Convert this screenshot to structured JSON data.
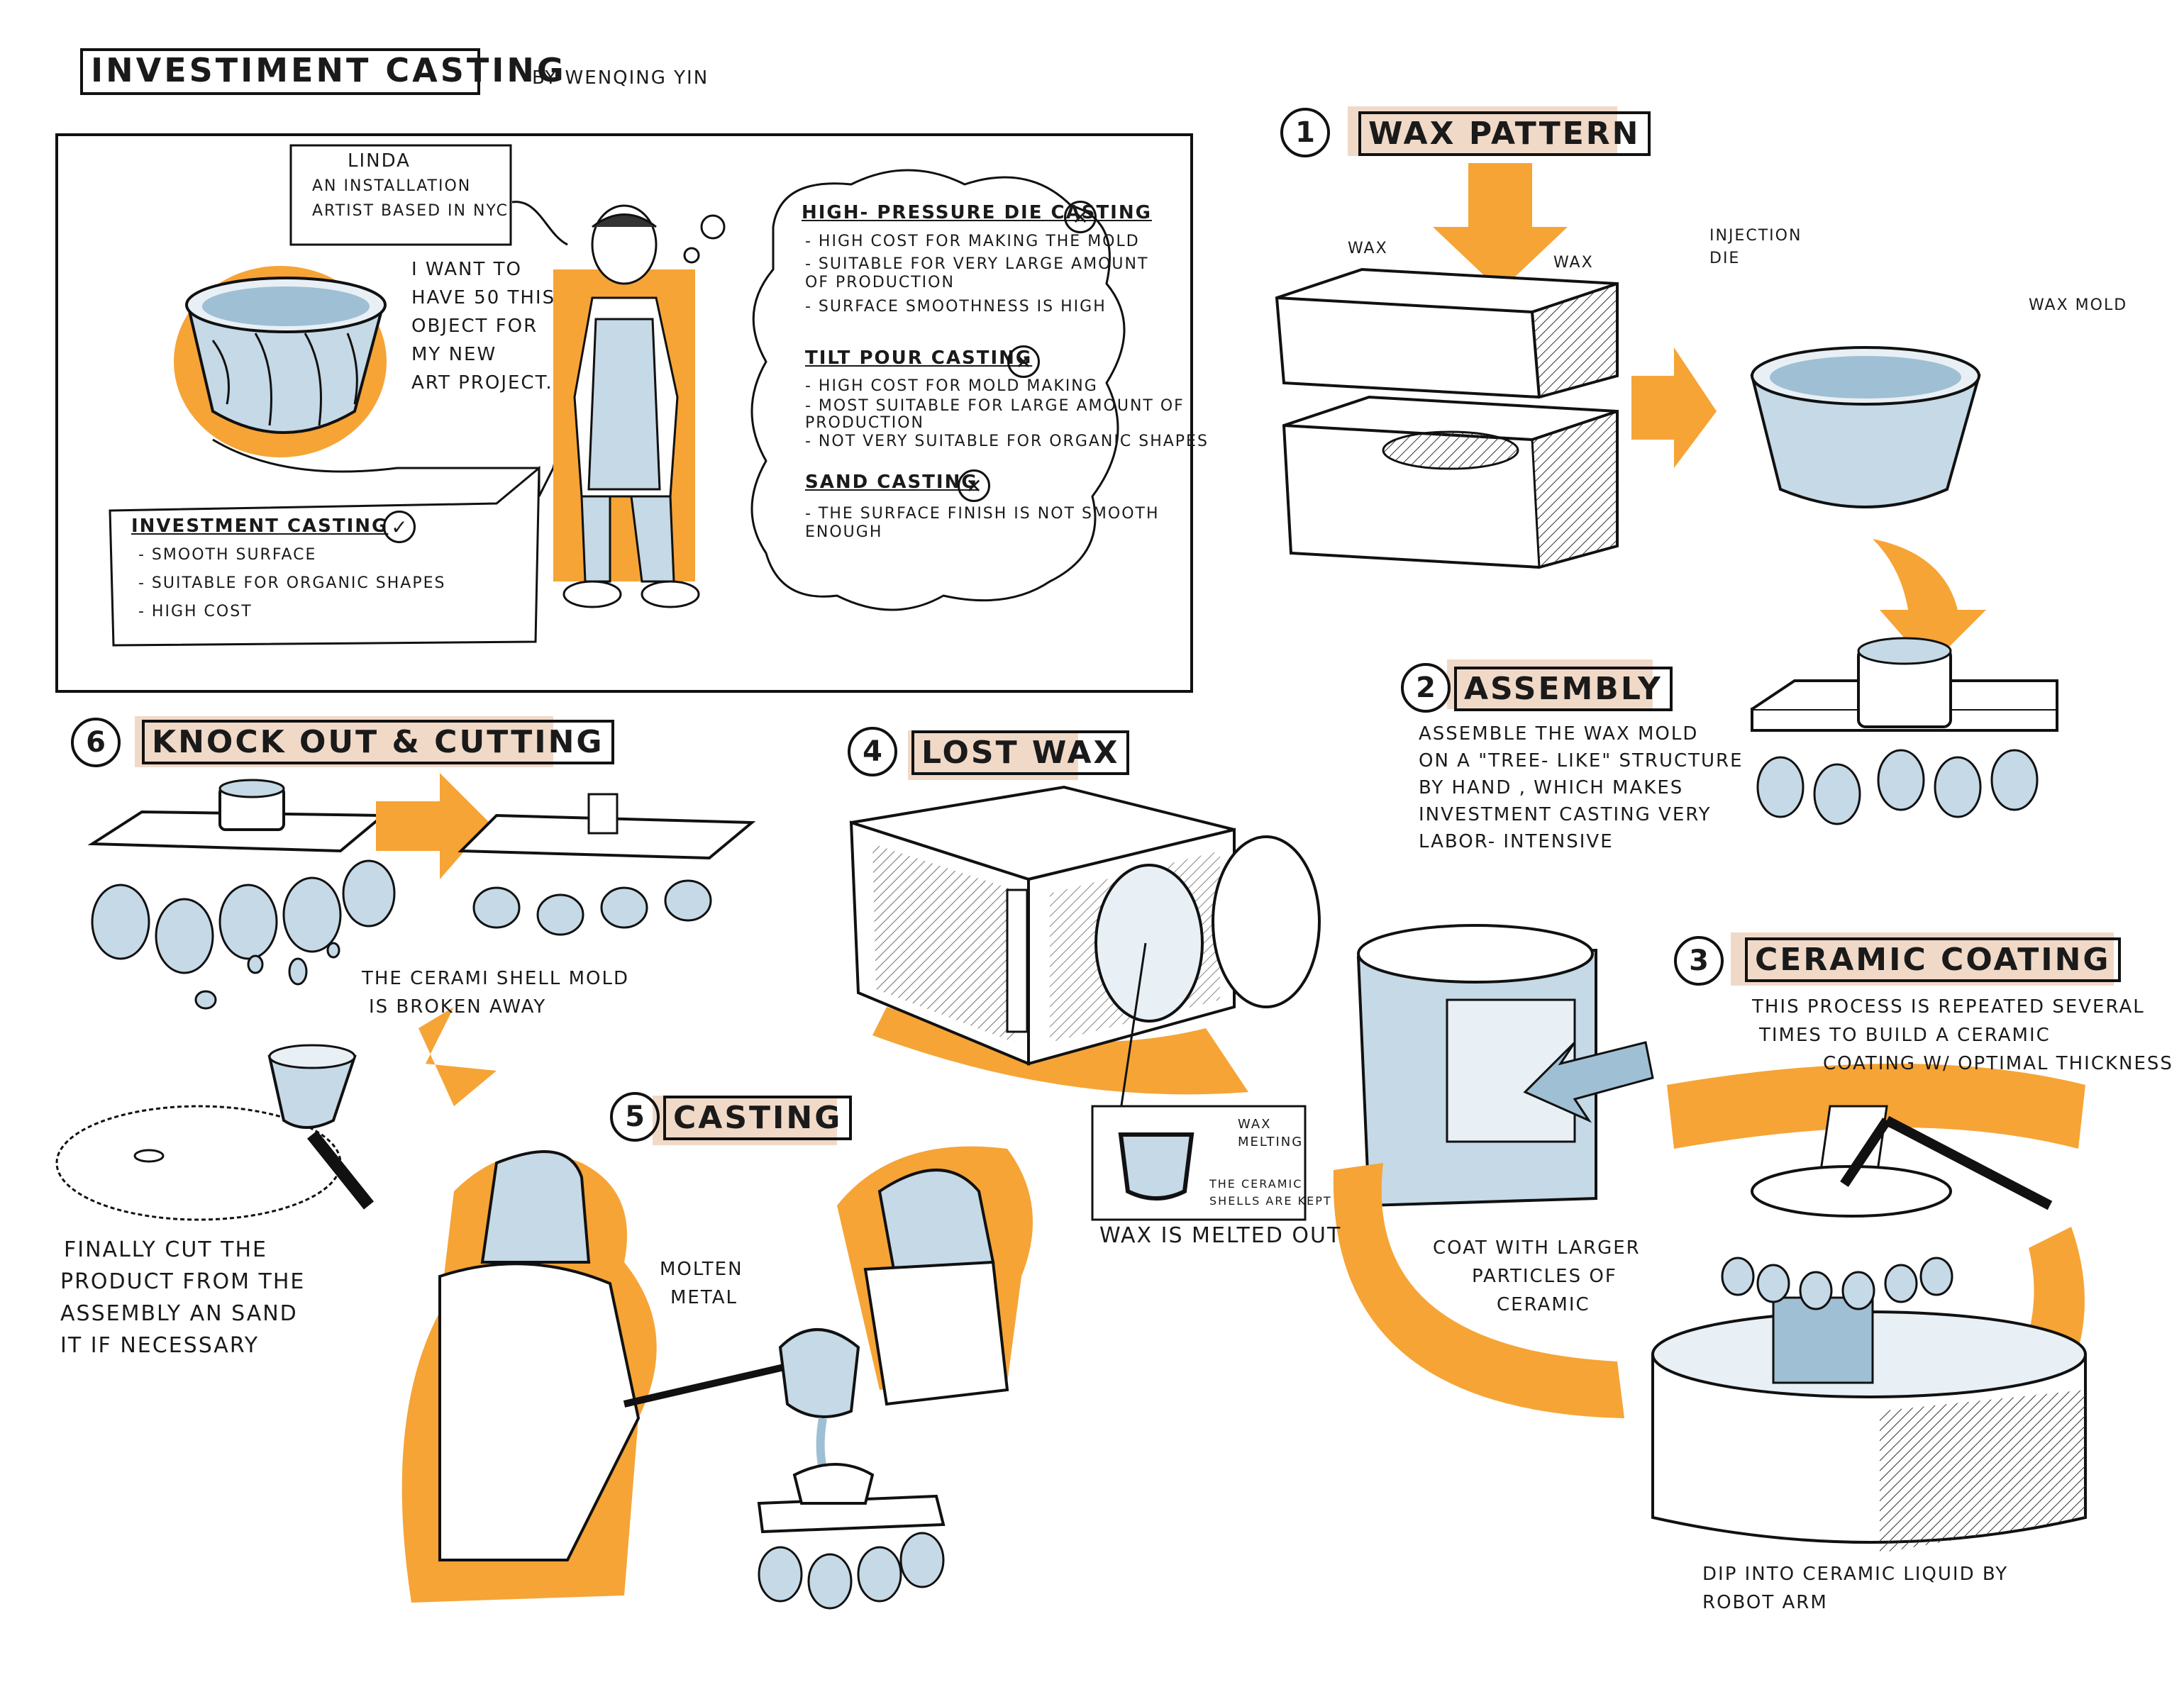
{
  "header": {
    "title": "INVESTIMENT CASTING",
    "author": "BY WENQING YIN"
  },
  "intro": {
    "persona": [
      "LINDA",
      "AN INSTALLATION",
      "ARTIST BASED IN NYC"
    ],
    "speech": [
      "I WANT TO",
      "HAVE 50 THIS",
      "OBJECT FOR",
      "MY NEW",
      "ART PROJECT."
    ],
    "investment_box": {
      "title": "INVESTMENT CASTING",
      "mark": "✓",
      "items": [
        "- SMOOTH SURFACE",
        "- SUITABLE FOR ORGANIC SHAPES",
        "- HIGH COST"
      ]
    },
    "thought_cloud": {
      "methods": [
        {
          "title": "HIGH- PRESSURE DIE CASTING",
          "mark": "✕",
          "items": [
            "- HIGH COST FOR MAKING THE MOLD",
            "- SUITABLE FOR VERY LARGE AMOUNT",
            "  OF PRODUCTION",
            "- SURFACE SMOOTHNESS IS HIGH"
          ]
        },
        {
          "title": "TILT POUR CASTING",
          "mark": "✕",
          "items": [
            "- HIGH COST FOR MOLD MAKING",
            "- MOST SUITABLE FOR LARGE AMOUNT OF",
            "  PRODUCTION",
            "- NOT VERY SUITABLE FOR ORGANIC SHAPES"
          ]
        },
        {
          "title": "SAND CASTING",
          "mark": "✕",
          "items": [
            "- THE SURFACE FINISH IS NOT SMOOTH",
            "  ENOUGH"
          ]
        }
      ]
    }
  },
  "steps": {
    "s1": {
      "num": "1",
      "title": "WAX PATTERN",
      "labels": {
        "wax_left": "WAX",
        "wax_right": "WAX",
        "injection": [
          "INJECTION",
          "DIE"
        ],
        "wax_mold": "WAX MOLD"
      }
    },
    "s2": {
      "num": "2",
      "title": "ASSEMBLY",
      "desc": [
        "ASSEMBLE THE WAX MOLD",
        "ON A \"TREE- LIKE\" STRUCTURE",
        "BY HAND , WHICH MAKES",
        "INVESTMENT CASTING VERY",
        "LABOR- INTENSIVE"
      ]
    },
    "s3": {
      "num": "3",
      "title": "CERAMIC COATING",
      "desc": [
        "THIS PROCESS IS REPEATED SEVERAL",
        "TIMES TO BUILD A CERAMIC",
        "COATING W/ OPTIMAL THICKNESS"
      ],
      "coat": [
        "COAT WITH LARGER",
        "PARTICLES OF",
        "CERAMIC"
      ],
      "dip": [
        "DIP INTO CERAMIC LIQUID BY",
        "ROBOT ARM"
      ]
    },
    "s4": {
      "num": "4",
      "title": "LOST WAX",
      "inset": {
        "wax_melting": [
          "WAX",
          "MELTING"
        ],
        "shells": [
          "THE CERAMIC",
          "SHELLS ARE KEPT"
        ]
      },
      "caption": "WAX IS MELTED OUT"
    },
    "s5": {
      "num": "5",
      "title": "CASTING",
      "molten": [
        "MOLTEN",
        "METAL"
      ]
    },
    "s6": {
      "num": "6",
      "title": "KNOCK OUT & CUTTING",
      "broken": [
        "THE CERAMI SHELL MOLD",
        "IS BROKEN AWAY"
      ],
      "cut": [
        "FINALLY CUT THE",
        "PRODUCT FROM THE",
        "ASSEMBLY AN SAND",
        "IT IF NECESSARY"
      ]
    }
  },
  "colors": {
    "orange": "#f6a436",
    "blue": "#c5d9e6",
    "peach": "#f1d9c8",
    "ink": "#1a1a1a"
  }
}
